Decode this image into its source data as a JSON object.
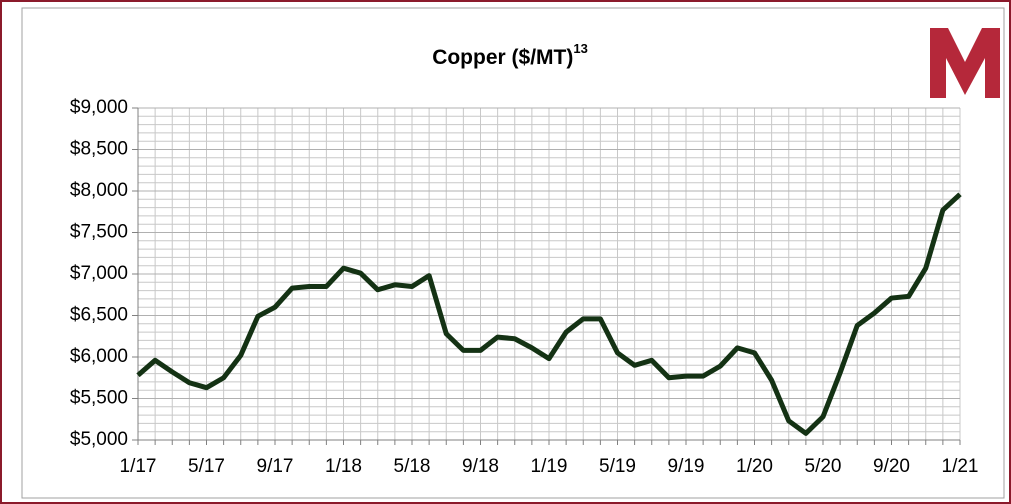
{
  "chart_data": {
    "type": "line",
    "title": "Copper ($/MT)",
    "title_superscript": "13",
    "categories": [
      "1/17",
      null,
      null,
      null,
      "5/17",
      null,
      null,
      null,
      "9/17",
      null,
      null,
      null,
      "1/18",
      null,
      null,
      null,
      "5/18",
      null,
      null,
      null,
      "9/18",
      null,
      null,
      null,
      "1/19",
      null,
      null,
      null,
      "5/19",
      null,
      null,
      null,
      "9/19",
      null,
      null,
      null,
      "1/20",
      null,
      null,
      null,
      "5/20",
      null,
      null,
      null,
      "9/20",
      null,
      null,
      null,
      "1/21"
    ],
    "series": [
      {
        "name": "Copper",
        "color": "#143214",
        "values": [
          5780,
          5960,
          5820,
          5690,
          5630,
          5750,
          6020,
          6490,
          6600,
          6830,
          6850,
          6850,
          7070,
          7010,
          6810,
          6870,
          6850,
          6980,
          6280,
          6080,
          6080,
          6240,
          6220,
          6110,
          5980,
          6300,
          6460,
          6460,
          6050,
          5900,
          5960,
          5750,
          5770,
          5770,
          5890,
          6110,
          6050,
          5720,
          5230,
          5080,
          5280,
          5810,
          6380,
          6530,
          6710,
          6730,
          7070,
          7770,
          7960
        ]
      }
    ],
    "ylim": [
      5000,
      9000
    ],
    "yticks": [
      {
        "value": 5000,
        "label": "$5,000"
      },
      {
        "value": 5500,
        "label": "$5,500"
      },
      {
        "value": 6000,
        "label": "$6,000"
      },
      {
        "value": 6500,
        "label": "$6,500"
      },
      {
        "value": 7000,
        "label": "$7,000"
      },
      {
        "value": 7500,
        "label": "$7,500"
      },
      {
        "value": 8000,
        "label": "$8,000"
      },
      {
        "value": 8500,
        "label": "$8,500"
      },
      {
        "value": 9000,
        "label": "$9,000"
      }
    ],
    "grid": true
  }
}
